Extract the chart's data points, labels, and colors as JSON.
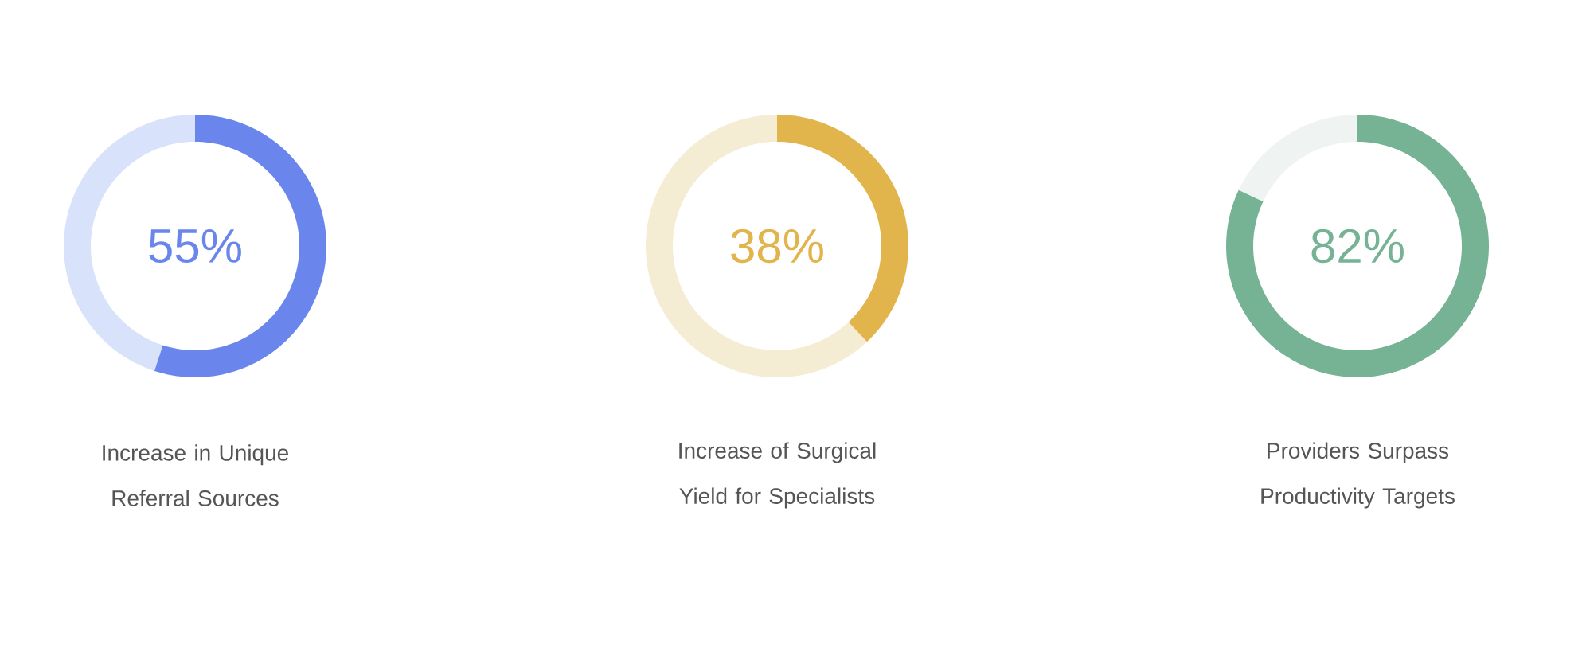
{
  "chart_data": [
    {
      "type": "donut",
      "title": "Increase in Unique Referral Sources",
      "categories": [
        null,
        null
      ],
      "values": [
        55,
        45
      ],
      "colors": [
        "#6a86ec",
        "#d8e2fa"
      ],
      "value_labels": [
        "55%",
        null
      ]
    },
    {
      "type": "donut",
      "title": "Increase of Surgical Yield for Specialists",
      "categories": [
        null,
        null
      ],
      "values": [
        38,
        62
      ],
      "colors": [
        "#e2b44c",
        "#f5ecd4"
      ],
      "value_labels": [
        "38%",
        null
      ]
    },
    {
      "type": "donut",
      "title": "Providers Surpass Productivity Targets",
      "categories": [
        null,
        null
      ],
      "values": [
        82,
        18
      ],
      "colors": [
        "#76b394",
        "#eff4f2"
      ],
      "value_labels": [
        "82%",
        null
      ]
    }
  ]
}
